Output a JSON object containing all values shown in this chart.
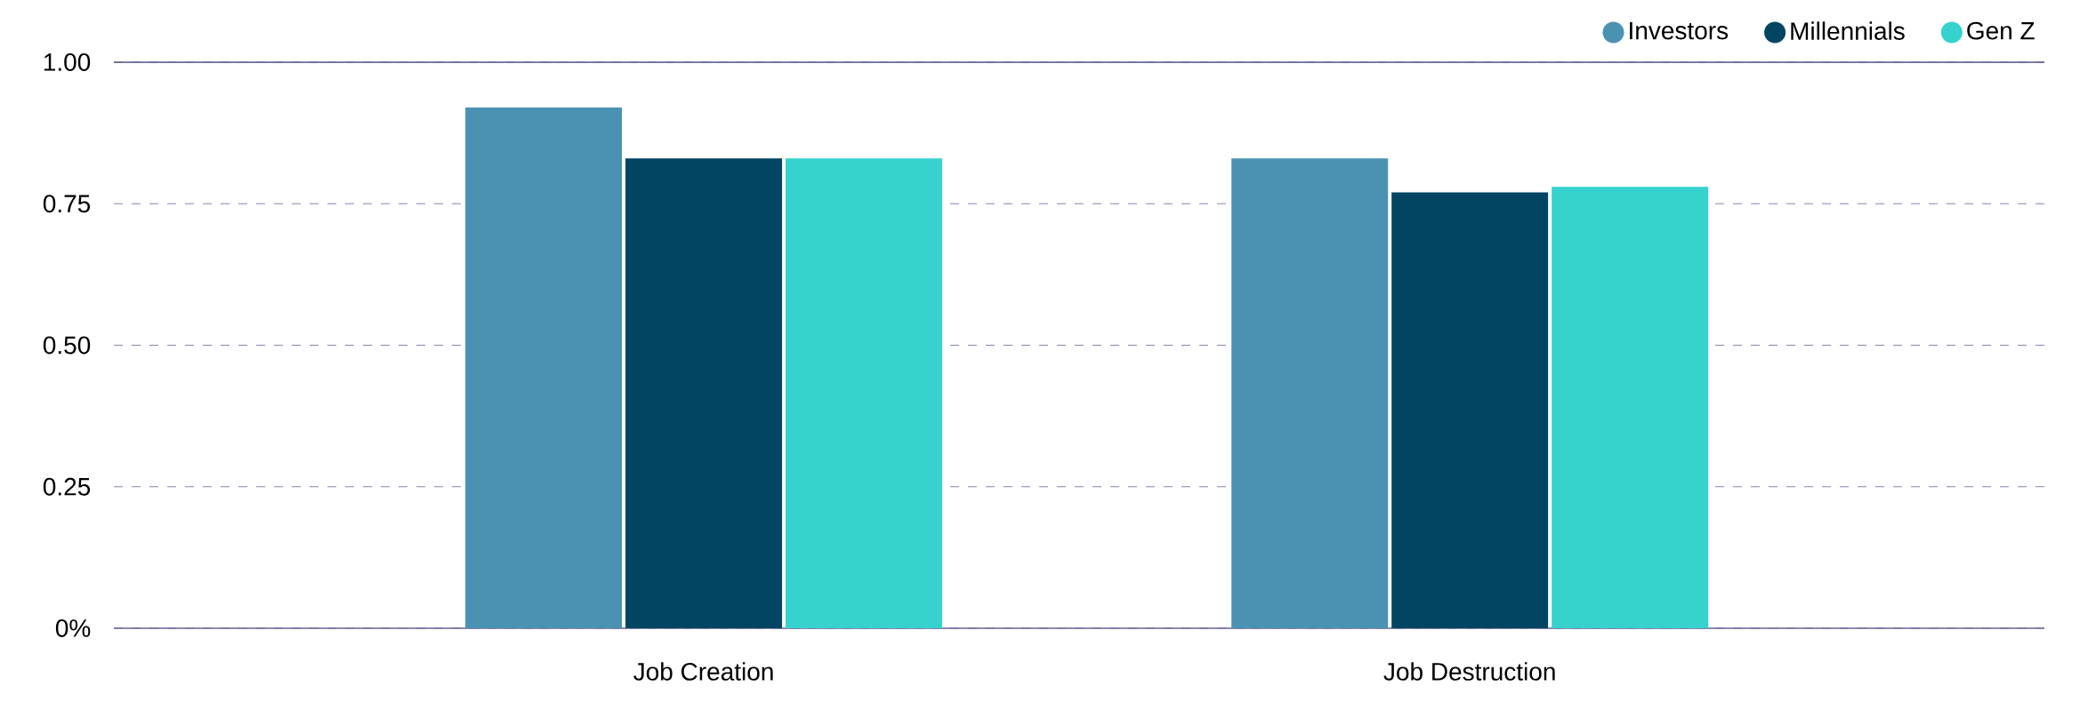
{
  "chart_data": {
    "type": "bar",
    "categories": [
      "Job Creation",
      "Job Destruction"
    ],
    "series": [
      {
        "name": "Investors",
        "color": "#4a92b2",
        "values": [
          0.92,
          0.83
        ]
      },
      {
        "name": "Millennials",
        "color": "#024563",
        "values": [
          0.83,
          0.77
        ]
      },
      {
        "name": "Gen Z",
        "color": "#35d2ce",
        "values": [
          0.83,
          0.78
        ]
      }
    ],
    "ylim": [
      0,
      1
    ],
    "yticks": [
      {
        "value": 0,
        "label": "0%"
      },
      {
        "value": 0.25,
        "label": "0.25"
      },
      {
        "value": 0.5,
        "label": "0.50"
      },
      {
        "value": 0.75,
        "label": "0.75"
      },
      {
        "value": 1,
        "label": "1.00"
      }
    ],
    "grid": "y",
    "legend": "top right"
  }
}
